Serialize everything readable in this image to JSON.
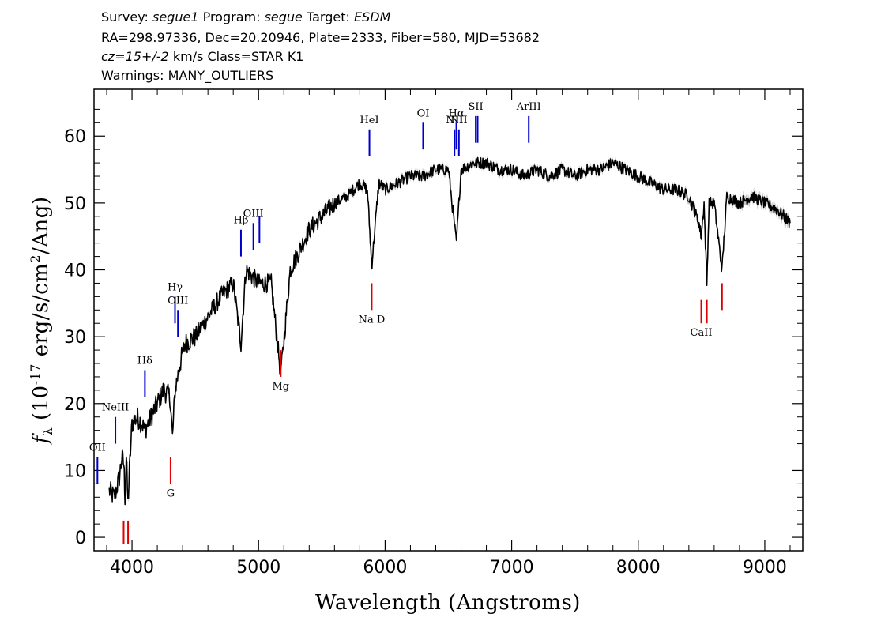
{
  "header": {
    "line1": {
      "survey_label": "Survey:",
      "survey": "segue1",
      "program_label": "Program:",
      "program": "segue",
      "target_label": "Target:",
      "target": "ESDM"
    },
    "line2": "RA=298.97336, Dec=20.20946, Plate=2333, Fiber=580, MJD=53682",
    "line3": {
      "cz": "cz=15+/-2",
      "rest": "km/s  Class=STAR K1"
    },
    "line4": "Warnings: MANY_OUTLIERS"
  },
  "chart_data": {
    "type": "line",
    "xlabel": "Wavelength (Angstroms)",
    "ylabel": "f_λ (10^-17 erg/s/cm^2/Ang)",
    "xlim": [
      3700,
      9300
    ],
    "ylim": [
      -2,
      67
    ],
    "x_ticks": [
      4000,
      5000,
      6000,
      7000,
      8000,
      9000
    ],
    "x_tick_labels": [
      "4000",
      "5000",
      "6000",
      "7000",
      "8000",
      "9000"
    ],
    "y_ticks": [
      0,
      10,
      20,
      30,
      40,
      50,
      60
    ],
    "y_tick_labels": [
      "0",
      "10",
      "20",
      "30",
      "40",
      "50",
      "60"
    ],
    "series": [
      {
        "x": [
          3820,
          3860,
          3900,
          3920,
          3935,
          3945,
          3955,
          3968,
          3980,
          4000,
          4040,
          4080,
          4100,
          4150,
          4200,
          4250,
          4300,
          4320,
          4340,
          4380,
          4420,
          4500,
          4600,
          4700,
          4800,
          4861,
          4900,
          4950,
          5000,
          5100,
          5172,
          5184,
          5250,
          5300,
          5400,
          5500,
          5600,
          5700,
          5800,
          5860,
          5890,
          5896,
          5950,
          6000,
          6100,
          6200,
          6300,
          6400,
          6500,
          6563,
          6600,
          6700,
          6800,
          6900,
          7000,
          7100,
          7200,
          7300,
          7400,
          7500,
          7600,
          7700,
          7800,
          7900,
          8000,
          8100,
          8200,
          8300,
          8400,
          8480,
          8498,
          8520,
          8542,
          8560,
          8600,
          8662,
          8700,
          8800,
          8900,
          9000,
          9100,
          9200
        ],
        "y": [
          7,
          6,
          9,
          12,
          11,
          6,
          12,
          5,
          10,
          17,
          18,
          17,
          16,
          18,
          20,
          22,
          21,
          15,
          22,
          26,
          29,
          30,
          33,
          36,
          38,
          29,
          40,
          39,
          38,
          38,
          25,
          26,
          40,
          42,
          46,
          48,
          50,
          51,
          53,
          52,
          42,
          41,
          53,
          52,
          53,
          54,
          54,
          55,
          55,
          44,
          55,
          56,
          56,
          55,
          55,
          54,
          55,
          54,
          55,
          54,
          55,
          55,
          56,
          55,
          54,
          53,
          52,
          52,
          51,
          47,
          45,
          50,
          38,
          50,
          50,
          40,
          51,
          50,
          51,
          50,
          49,
          47
        ]
      }
    ],
    "error_band_color": "#b0b0b0",
    "line_color": "#000000",
    "emission_color": "#0000cc",
    "absorption_color": "#e00000",
    "emission_lines": [
      {
        "label": "OII",
        "x": 3727,
        "y_lo": 8,
        "y_hi": 12
      },
      {
        "label": "NeIII",
        "x": 3869,
        "y_lo": 14,
        "y_hi": 18
      },
      {
        "label": "Hδ",
        "x": 4102,
        "y_lo": 21,
        "y_hi": 25
      },
      {
        "label": "Hγ",
        "x": 4340,
        "y_lo": 32,
        "y_hi": 36
      },
      {
        "label": "OIII",
        "x": 4363,
        "y_lo": 30,
        "y_hi": 34
      },
      {
        "label": "Hβ",
        "x": 4861,
        "y_lo": 42,
        "y_hi": 46
      },
      {
        "label": "OIII",
        "x": 4959,
        "y_lo": 43,
        "y_hi": 47
      },
      {
        "label": "",
        "x": 5007,
        "y_lo": 44,
        "y_hi": 48
      },
      {
        "label": "HeI",
        "x": 5876,
        "y_lo": 57,
        "y_hi": 61
      },
      {
        "label": "OI",
        "x": 6300,
        "y_lo": 58,
        "y_hi": 62
      },
      {
        "label": "NII",
        "x": 6548,
        "y_lo": 57,
        "y_hi": 61
      },
      {
        "label": "Hα",
        "x": 6563,
        "y_lo": 58,
        "y_hi": 62
      },
      {
        "label": "NII",
        "x": 6583,
        "y_lo": 57,
        "y_hi": 61
      },
      {
        "label": "SII",
        "x": 6716,
        "y_lo": 59,
        "y_hi": 63
      },
      {
        "label": "",
        "x": 6731,
        "y_lo": 59,
        "y_hi": 63
      },
      {
        "label": "ArIII",
        "x": 7135,
        "y_lo": 59,
        "y_hi": 63
      }
    ],
    "absorption_lines": [
      {
        "label": "",
        "x": 3934,
        "y_lo": -1,
        "y_hi": 2.5
      },
      {
        "label": "",
        "x": 3969,
        "y_lo": -1,
        "y_hi": 2.5
      },
      {
        "label": "G",
        "x": 4305,
        "y_lo": 8,
        "y_hi": 12
      },
      {
        "label": "Mg",
        "x": 5175,
        "y_lo": 24,
        "y_hi": 28
      },
      {
        "label": "Na D",
        "x": 5894,
        "y_lo": 34,
        "y_hi": 38
      },
      {
        "label": "CaII",
        "x": 8498,
        "y_lo": 32,
        "y_hi": 35.5
      },
      {
        "label": "",
        "x": 8542,
        "y_lo": 32,
        "y_hi": 35.5
      },
      {
        "label": "",
        "x": 8662,
        "y_lo": 34,
        "y_hi": 38
      }
    ]
  }
}
